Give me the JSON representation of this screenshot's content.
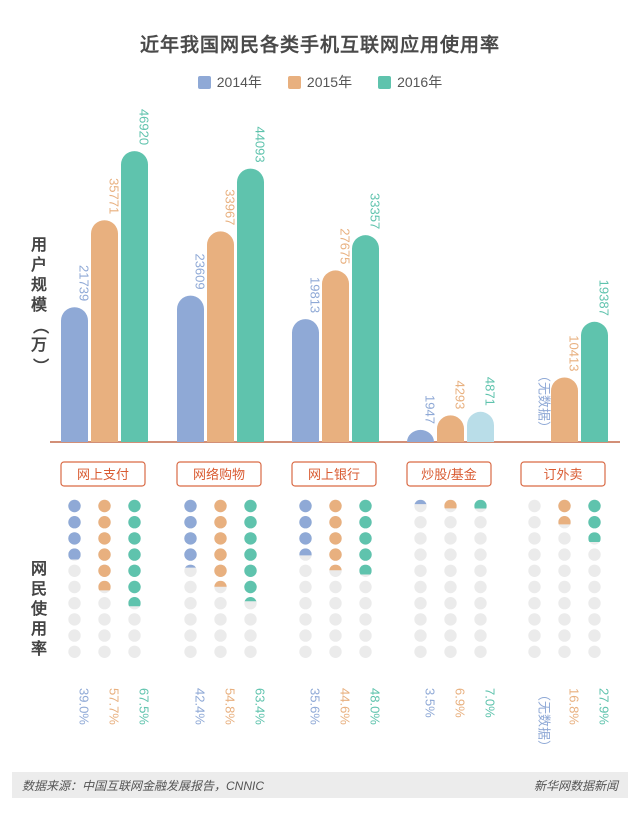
{
  "title": "近年我国网民各类手机互联网应用使用率",
  "legend": [
    {
      "label": "2014年",
      "color": "#8fa9d6"
    },
    {
      "label": "2015年",
      "color": "#e8b07f"
    },
    {
      "label": "2016年",
      "color": "#5fc3ad"
    }
  ],
  "ylabel_users": [
    "用",
    "户",
    "规",
    "模",
    "（",
    "万",
    "）"
  ],
  "ylabel_rate": [
    "网",
    "民",
    "使",
    "用",
    "率"
  ],
  "chart_data": [
    {
      "type": "bar",
      "title": "用户规模（万）",
      "categories": [
        "网上支付",
        "网络购物",
        "网上银行",
        "炒股/基金",
        "订外卖"
      ],
      "series": [
        {
          "name": "2014年",
          "values": [
            21739,
            23609,
            19813,
            1947,
            null
          ],
          "labels": [
            "21739",
            "23609",
            "19813",
            "1947",
            "（无数据）"
          ]
        },
        {
          "name": "2015年",
          "values": [
            35771,
            33967,
            27675,
            4293,
            10413
          ],
          "labels": [
            "35771",
            "33967",
            "27675",
            "4293",
            "10413"
          ]
        },
        {
          "name": "2016年",
          "values": [
            46920,
            44093,
            33357,
            4871,
            19387
          ],
          "labels": [
            "46920",
            "44093",
            "33357",
            "4871",
            "19387"
          ]
        }
      ]
    },
    {
      "type": "scatter",
      "title": "网民使用率",
      "categories": [
        "网上支付",
        "网络购物",
        "网上银行",
        "炒股/基金",
        "订外卖"
      ],
      "series": [
        {
          "name": "2014年",
          "values": [
            39.0,
            42.4,
            35.6,
            3.5,
            null
          ],
          "labels": [
            "39.0%",
            "42.4%",
            "35.6%",
            "3.5%",
            "（无数据）"
          ]
        },
        {
          "name": "2015年",
          "values": [
            57.7,
            54.8,
            44.6,
            6.9,
            16.8
          ],
          "labels": [
            "57.7%",
            "54.8%",
            "44.6%",
            "6.9%",
            "16.8%"
          ]
        },
        {
          "name": "2016年",
          "values": [
            67.5,
            63.4,
            48.0,
            7.0,
            27.9
          ],
          "labels": [
            "67.5%",
            "63.4%",
            "48.0%",
            "7.0%",
            "27.9%"
          ]
        }
      ]
    }
  ],
  "footer": {
    "source": "数据来源：中国互联网金融发展报告，CNNIC",
    "brand": "新华网数据新闻"
  }
}
